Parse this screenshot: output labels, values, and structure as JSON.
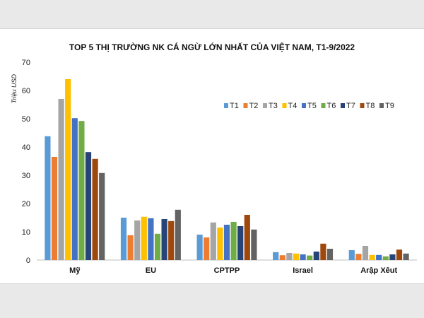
{
  "chart_data": {
    "type": "bar",
    "title": "TOP 5 THỊ TRƯỜNG NK CÁ NGỪ LỚN NHẤT CỦA VIỆT NAM, T1-9/2022",
    "ylabel": "Triệu USD",
    "xlabel": "",
    "ylim": [
      0,
      70
    ],
    "yticks": [
      0,
      10,
      20,
      30,
      40,
      50,
      60,
      70
    ],
    "grid": false,
    "legend_position": "right",
    "categories": [
      "Mỹ",
      "EU",
      "CPTPP",
      "Israel",
      "Arập Xêut"
    ],
    "series": [
      {
        "name": "T1",
        "color": "#5b9bd5",
        "values": [
          43.8,
          15.0,
          9.0,
          2.8,
          3.5
        ]
      },
      {
        "name": "T2",
        "color": "#ed7d31",
        "values": [
          36.5,
          8.8,
          8.0,
          1.7,
          2.2
        ]
      },
      {
        "name": "T3",
        "color": "#a5a5a5",
        "values": [
          57.0,
          14.0,
          13.3,
          2.5,
          5.0
        ]
      },
      {
        "name": "T4",
        "color": "#ffc000",
        "values": [
          64.0,
          15.3,
          11.5,
          2.3,
          1.8
        ]
      },
      {
        "name": "T5",
        "color": "#4472c4",
        "values": [
          50.2,
          14.8,
          12.5,
          2.0,
          1.8
        ]
      },
      {
        "name": "T6",
        "color": "#70ad47",
        "values": [
          49.2,
          9.3,
          13.5,
          1.6,
          1.3
        ]
      },
      {
        "name": "T7",
        "color": "#264478",
        "values": [
          38.2,
          14.5,
          12.0,
          3.0,
          2.0
        ]
      },
      {
        "name": "T8",
        "color": "#9e480e",
        "values": [
          35.8,
          13.8,
          16.0,
          5.8,
          3.7
        ]
      },
      {
        "name": "T9",
        "color": "#636363",
        "values": [
          30.8,
          17.8,
          10.8,
          4.0,
          2.3
        ]
      }
    ]
  }
}
